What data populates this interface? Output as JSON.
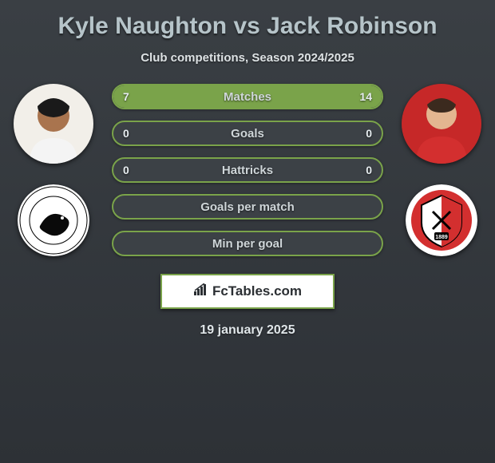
{
  "title": "Kyle Naughton vs Jack Robinson",
  "subtitle": "Club competitions, Season 2024/2025",
  "date": "19 january 2025",
  "brand": "FcTables.com",
  "accent_color": "#7aa34a",
  "left_player": {
    "name": "Kyle Naughton",
    "avatar_bg": "#f2efe9",
    "skin": "#a9744e",
    "club_bg": "#ffffff",
    "club_name": "Swansea City"
  },
  "right_player": {
    "name": "Jack Robinson",
    "avatar_bg": "#c62828",
    "skin": "#e3b690",
    "club_bg": "#ffffff",
    "club_name": "Sheffield United"
  },
  "stats": [
    {
      "label": "Matches",
      "left_val": "7",
      "right_val": "14",
      "left_pct": 33,
      "right_pct": 67
    },
    {
      "label": "Goals",
      "left_val": "0",
      "right_val": "0",
      "left_pct": 0,
      "right_pct": 0
    },
    {
      "label": "Hattricks",
      "left_val": "0",
      "right_val": "0",
      "left_pct": 0,
      "right_pct": 0
    },
    {
      "label": "Goals per match",
      "left_val": "",
      "right_val": "",
      "left_pct": 0,
      "right_pct": 0
    },
    {
      "label": "Min per goal",
      "left_val": "",
      "right_val": "",
      "left_pct": 0,
      "right_pct": 0
    }
  ]
}
